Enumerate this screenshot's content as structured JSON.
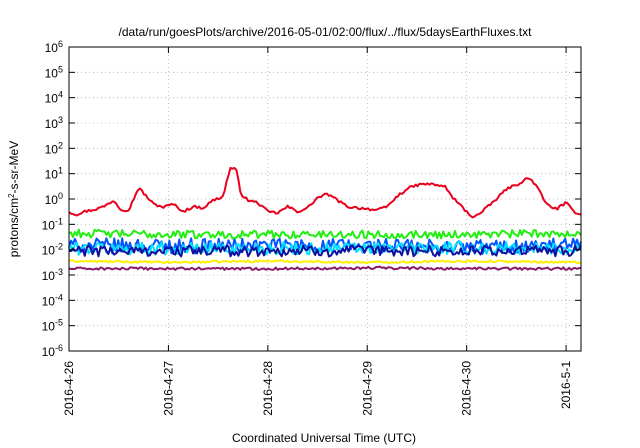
{
  "chart_data": {
    "type": "line",
    "title": "/data/run/goesPlots/archive/2016-05-01/02:00/flux/../flux/5daysEarthFluxes.txt",
    "xlabel": "Coordinated Universal Time (UTC)",
    "ylabel": "protons/cm2-s-sr-MeV",
    "ylabel_parts": {
      "base": "protons/cm",
      "sup": "2",
      "rest": "-s-sr-MeV"
    },
    "y_scale": "log",
    "ylim_exponent": [
      -6,
      6
    ],
    "y_ticks": [
      {
        "base": "10",
        "exp": "-6"
      },
      {
        "base": "10",
        "exp": "-5"
      },
      {
        "base": "10",
        "exp": "-4"
      },
      {
        "base": "10",
        "exp": "-3"
      },
      {
        "base": "10",
        "exp": "-2"
      },
      {
        "base": "10",
        "exp": "-1"
      },
      {
        "base": "10",
        "exp": "0"
      },
      {
        "base": "10",
        "exp": "1"
      },
      {
        "base": "10",
        "exp": "2"
      },
      {
        "base": "10",
        "exp": "3"
      },
      {
        "base": "10",
        "exp": "4"
      },
      {
        "base": "10",
        "exp": "5"
      },
      {
        "base": "10",
        "exp": "6"
      }
    ],
    "xlim_days": [
      0,
      5.15
    ],
    "x_ticks": [
      {
        "label": "2016-4-26",
        "day": 0
      },
      {
        "label": "2016-4-27",
        "day": 1
      },
      {
        "label": "2016-4-28",
        "day": 2
      },
      {
        "label": "2016-4-29",
        "day": 3
      },
      {
        "label": "2016-4-30",
        "day": 4
      },
      {
        "label": "2016-5-1",
        "day": 5
      }
    ],
    "grid": true,
    "legend": "none",
    "series": [
      {
        "color": "#e8001c",
        "width": 2,
        "noise": 0.05,
        "points": [
          [
            0.0,
            -0.5
          ],
          [
            0.07,
            -0.62
          ],
          [
            0.15,
            -0.5
          ],
          [
            0.25,
            -0.42
          ],
          [
            0.35,
            -0.3
          ],
          [
            0.45,
            -0.05
          ],
          [
            0.52,
            -0.4
          ],
          [
            0.6,
            -0.45
          ],
          [
            0.7,
            0.45
          ],
          [
            0.78,
            0.1
          ],
          [
            0.85,
            -0.2
          ],
          [
            0.95,
            -0.32
          ],
          [
            1.05,
            -0.2
          ],
          [
            1.15,
            -0.5
          ],
          [
            1.25,
            -0.3
          ],
          [
            1.35,
            -0.35
          ],
          [
            1.45,
            -0.05
          ],
          [
            1.55,
            0.1
          ],
          [
            1.62,
            1.22
          ],
          [
            1.68,
            1.18
          ],
          [
            1.73,
            0.2
          ],
          [
            1.8,
            -0.05
          ],
          [
            1.9,
            -0.15
          ],
          [
            2.0,
            -0.5
          ],
          [
            2.1,
            -0.55
          ],
          [
            2.2,
            -0.3
          ],
          [
            2.3,
            -0.5
          ],
          [
            2.4,
            -0.35
          ],
          [
            2.5,
            0.05
          ],
          [
            2.6,
            0.2
          ],
          [
            2.7,
            -0.05
          ],
          [
            2.8,
            -0.3
          ],
          [
            2.9,
            -0.35
          ],
          [
            3.0,
            -0.38
          ],
          [
            3.1,
            -0.45
          ],
          [
            3.2,
            -0.3
          ],
          [
            3.3,
            0.1
          ],
          [
            3.4,
            0.4
          ],
          [
            3.5,
            0.55
          ],
          [
            3.6,
            0.6
          ],
          [
            3.7,
            0.55
          ],
          [
            3.78,
            0.5
          ],
          [
            3.85,
            0.1
          ],
          [
            3.95,
            -0.3
          ],
          [
            4.05,
            -0.7
          ],
          [
            4.12,
            -0.62
          ],
          [
            4.2,
            -0.35
          ],
          [
            4.3,
            0.0
          ],
          [
            4.4,
            0.4
          ],
          [
            4.5,
            0.55
          ],
          [
            4.6,
            0.8
          ],
          [
            4.65,
            0.78
          ],
          [
            4.72,
            0.4
          ],
          [
            4.8,
            -0.2
          ],
          [
            4.9,
            -0.4
          ],
          [
            5.0,
            -0.15
          ],
          [
            5.08,
            -0.5
          ],
          [
            5.15,
            -0.6
          ]
        ]
      },
      {
        "color": "#ffee00",
        "width": 2,
        "noise": 0.04,
        "points": [
          [
            0.0,
            -2.45
          ],
          [
            1.0,
            -2.5
          ],
          [
            2.0,
            -2.45
          ],
          [
            3.0,
            -2.5
          ],
          [
            4.0,
            -2.45
          ],
          [
            5.15,
            -2.5
          ]
        ]
      },
      {
        "color": "#0055ff",
        "width": 2,
        "noise": 0.3,
        "points": [
          [
            0.0,
            -1.85
          ],
          [
            1.0,
            -1.85
          ],
          [
            2.0,
            -1.85
          ],
          [
            3.0,
            -1.85
          ],
          [
            4.0,
            -1.9
          ],
          [
            5.15,
            -1.85
          ]
        ]
      },
      {
        "color": "#00e0ff",
        "width": 2,
        "noise": 0.25,
        "points": [
          [
            0.0,
            -1.95
          ],
          [
            1.0,
            -1.95
          ],
          [
            2.0,
            -1.95
          ],
          [
            3.0,
            -1.95
          ],
          [
            4.0,
            -1.95
          ],
          [
            5.15,
            -1.95
          ]
        ]
      },
      {
        "color": "#22ee11",
        "width": 2,
        "noise": 0.16,
        "points": [
          [
            0.0,
            -1.35
          ],
          [
            1.0,
            -1.4
          ],
          [
            2.0,
            -1.4
          ],
          [
            3.0,
            -1.4
          ],
          [
            4.0,
            -1.4
          ],
          [
            5.15,
            -1.35
          ]
        ]
      },
      {
        "color": "#1010a0",
        "width": 2,
        "noise": 0.22,
        "points": [
          [
            0.0,
            -2.05
          ],
          [
            1.0,
            -2.05
          ],
          [
            2.0,
            -2.05
          ],
          [
            3.0,
            -2.05
          ],
          [
            4.0,
            -2.05
          ],
          [
            5.15,
            -2.05
          ]
        ]
      },
      {
        "color": "#8b1a6b",
        "width": 2,
        "noise": 0.05,
        "points": [
          [
            0.0,
            -2.75
          ],
          [
            1.0,
            -2.75
          ],
          [
            2.0,
            -2.75
          ],
          [
            3.0,
            -2.72
          ],
          [
            4.0,
            -2.75
          ],
          [
            5.15,
            -2.75
          ]
        ]
      }
    ]
  }
}
